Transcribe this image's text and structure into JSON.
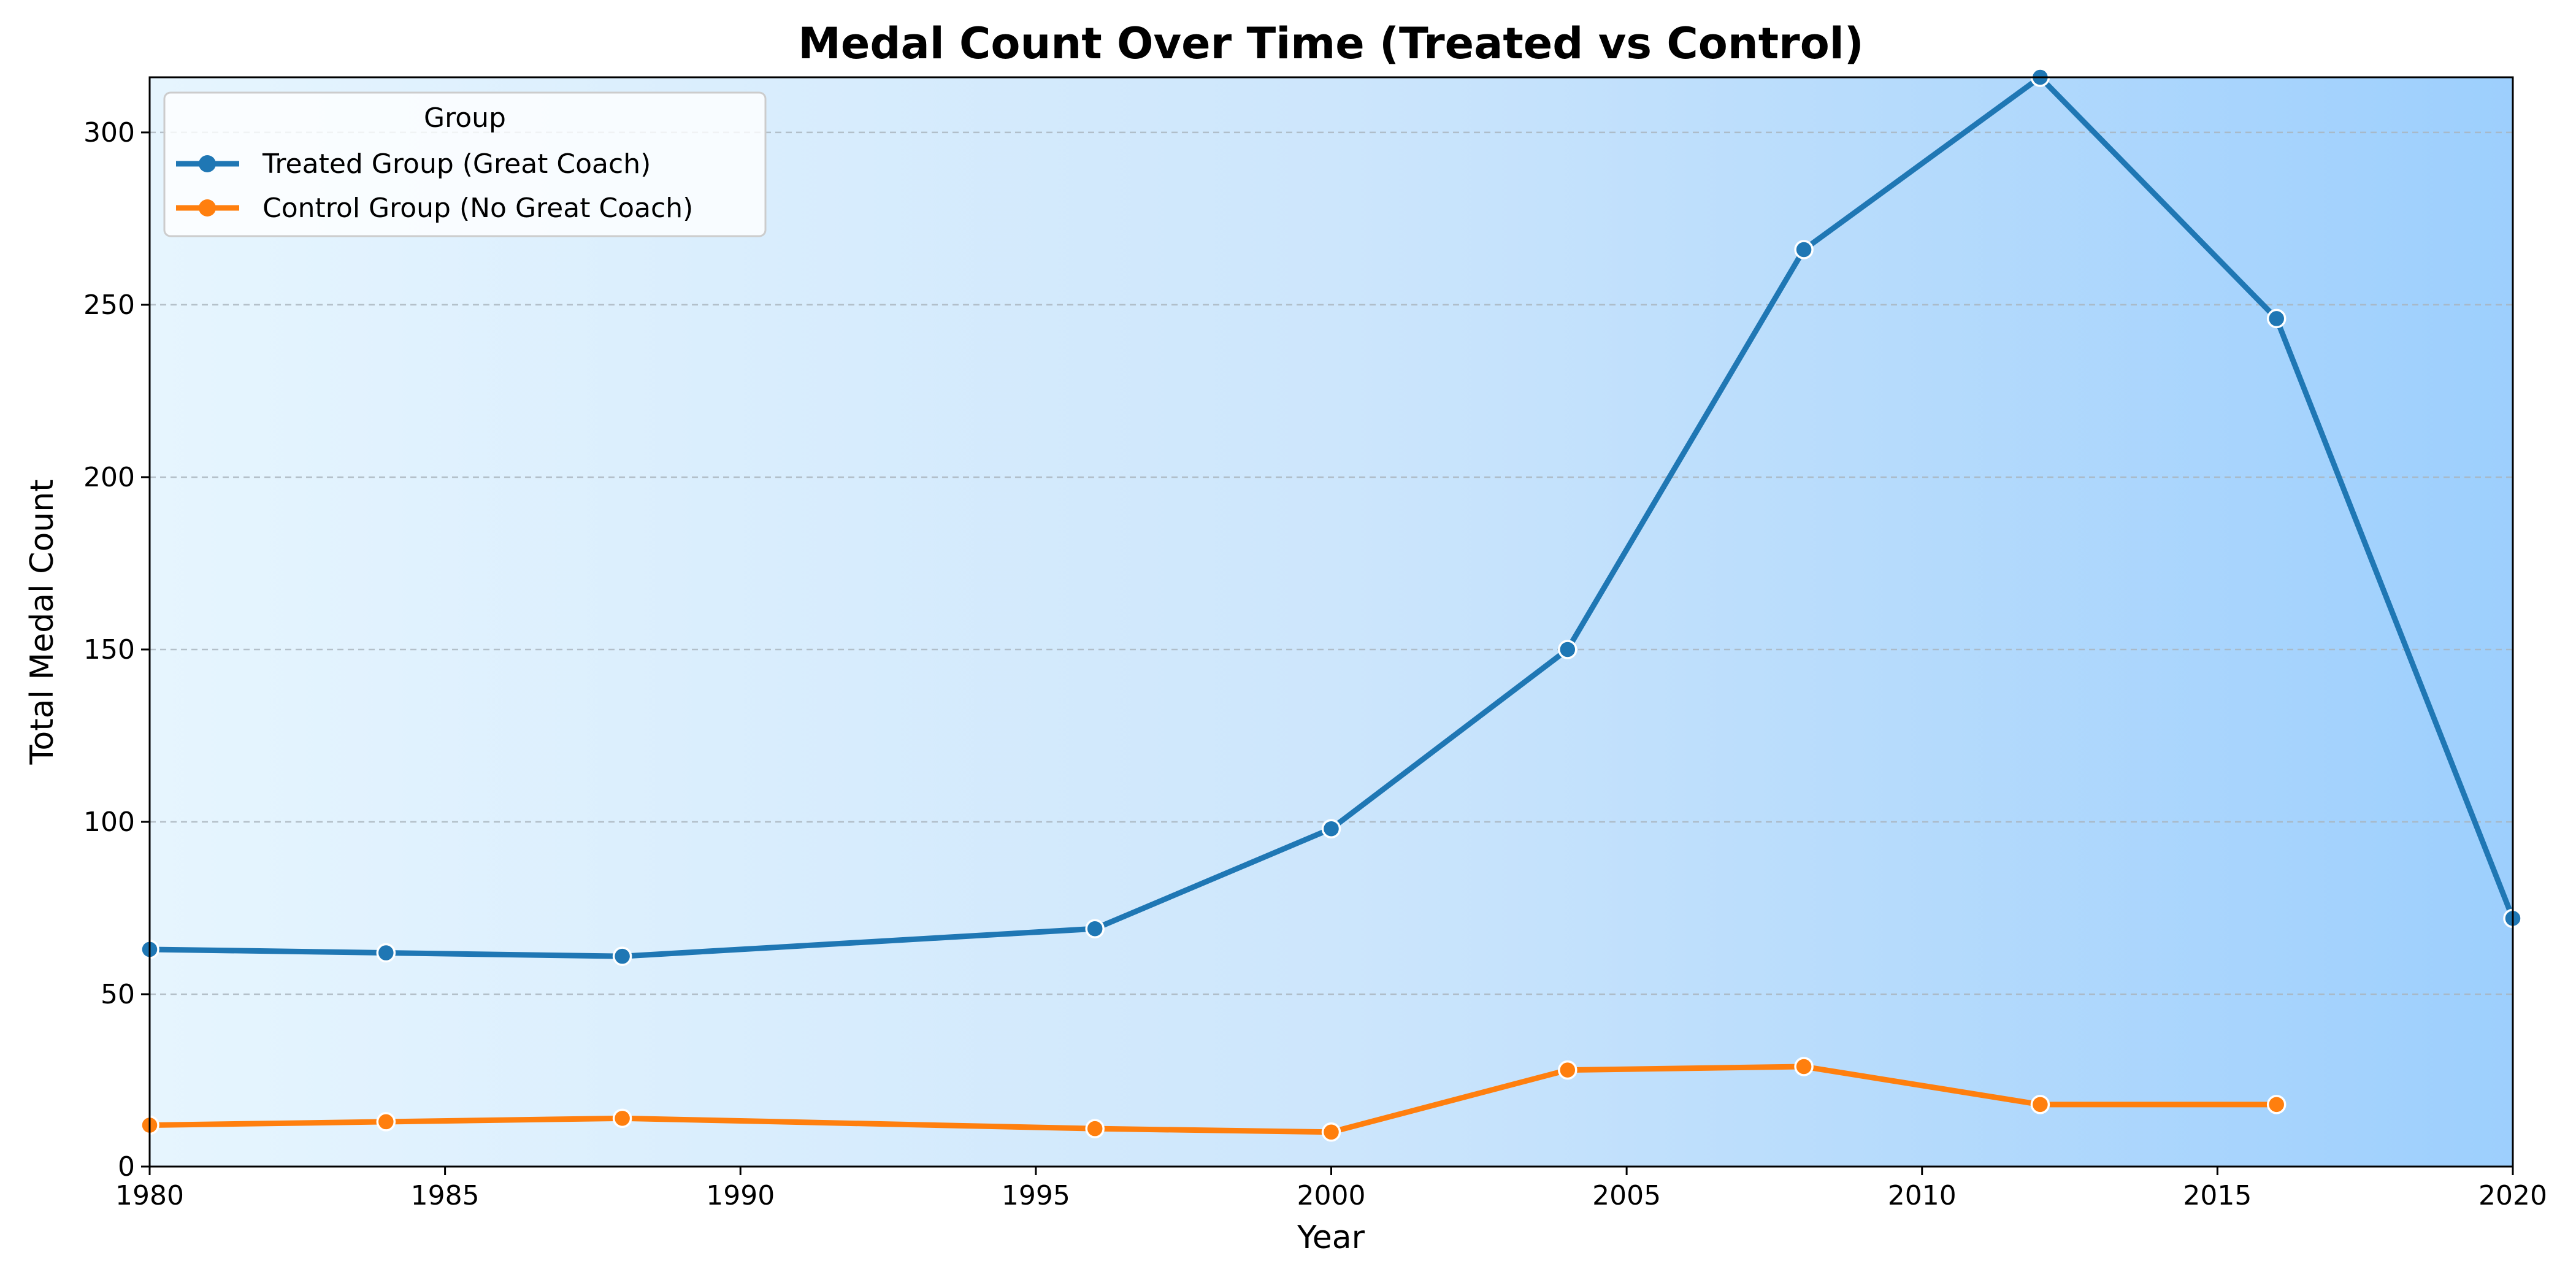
{
  "chart_data": {
    "type": "line",
    "title": "Medal Count Over Time (Treated vs Control)",
    "xlabel": "Year",
    "ylabel": "Total Medal Count",
    "xlim": [
      1980,
      2020
    ],
    "ylim": [
      0,
      316
    ],
    "x_ticks": [
      1980,
      1985,
      1990,
      1995,
      2000,
      2005,
      2010,
      2015,
      2020
    ],
    "y_ticks": [
      0,
      50,
      100,
      150,
      200,
      250,
      300
    ],
    "grid": "y-dashed",
    "legend": {
      "title": "Group",
      "placement": "top-left"
    },
    "series": [
      {
        "name": "Treated Group (Great Coach)",
        "color": "#1f77b4",
        "x": [
          1980,
          1984,
          1988,
          1996,
          2000,
          2004,
          2008,
          2012,
          2016,
          2020
        ],
        "y": [
          63,
          62,
          61,
          69,
          98,
          150,
          266,
          316,
          246,
          72
        ]
      },
      {
        "name": "Control Group (No Great Coach)",
        "color": "#ff7f0e",
        "x": [
          1980,
          1984,
          1988,
          1996,
          2000,
          2004,
          2008,
          2012,
          2016
        ],
        "y": [
          12,
          13,
          14,
          11,
          10,
          28,
          29,
          18,
          18
        ]
      }
    ]
  }
}
